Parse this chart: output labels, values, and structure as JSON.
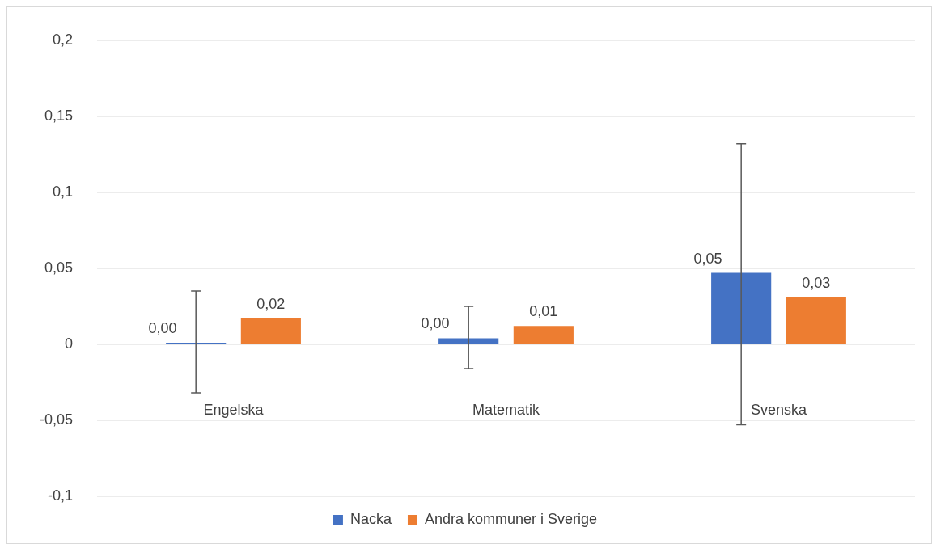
{
  "chart_data": {
    "type": "bar",
    "categories": [
      "Engelska",
      "Matematik",
      "Svenska"
    ],
    "series": [
      {
        "name": "Nacka",
        "color": "#4472c4",
        "values": [
          0.001,
          0.004,
          0.047
        ],
        "value_labels": [
          "0,00",
          "0,00",
          "0,05"
        ],
        "errors": [
          [
            -0.032,
            0.035
          ],
          [
            -0.016,
            0.025
          ],
          [
            -0.053,
            0.132
          ]
        ]
      },
      {
        "name": "Andra kommuner i Sverige",
        "color": "#ed7d31",
        "values": [
          0.017,
          0.012,
          0.031
        ],
        "value_labels": [
          "0,02",
          "0,01",
          "0,03"
        ]
      }
    ],
    "ylim": [
      -0.1,
      0.2
    ],
    "yticks": [
      {
        "value": -0.1,
        "label": "-0,1"
      },
      {
        "value": -0.05,
        "label": "-0,05"
      },
      {
        "value": 0,
        "label": "0"
      },
      {
        "value": 0.05,
        "label": "0,05"
      },
      {
        "value": 0.1,
        "label": "0,1"
      },
      {
        "value": 0.15,
        "label": "0,15"
      },
      {
        "value": 0.2,
        "label": "0,2"
      }
    ],
    "grid": "y",
    "legend": "bottom"
  }
}
